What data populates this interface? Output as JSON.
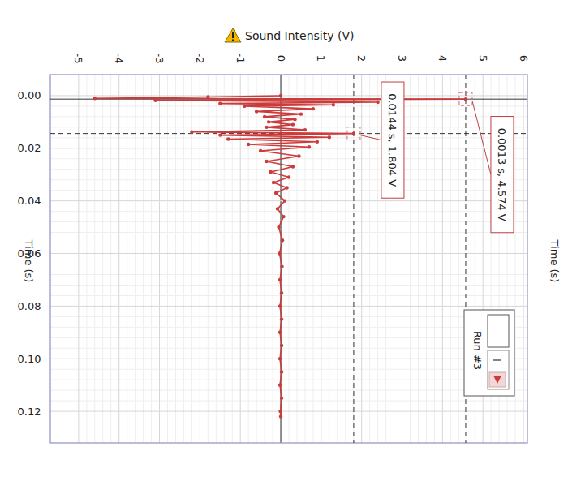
{
  "chart_data": {
    "type": "line",
    "y_label": "Sound Intensity (V)",
    "x_label": "Time (s)",
    "x": [
      0.0,
      0.0005,
      0.001,
      0.0013,
      0.0018,
      0.0025,
      0.003,
      0.0035,
      0.004,
      0.005,
      0.006,
      0.007,
      0.008,
      0.009,
      0.01,
      0.011,
      0.012,
      0.013,
      0.0138,
      0.0144,
      0.015,
      0.0158,
      0.0165,
      0.0175,
      0.0185,
      0.0195,
      0.021,
      0.023,
      0.025,
      0.027,
      0.029,
      0.031,
      0.033,
      0.035,
      0.037,
      0.04,
      0.043,
      0.046,
      0.05,
      0.055,
      0.06,
      0.065,
      0.07,
      0.075,
      0.08,
      0.085,
      0.09,
      0.095,
      0.1,
      0.105,
      0.11,
      0.115,
      0.12,
      0.122
    ],
    "series": [
      {
        "name": "Run #3",
        "color": "#cc3b3b",
        "marker": "circle",
        "values": [
          0,
          -1.8,
          -4.6,
          4.574,
          -3.1,
          2.4,
          -1.5,
          1.3,
          -0.9,
          0.8,
          -0.6,
          0.5,
          -0.4,
          0.35,
          -0.3,
          0.3,
          -0.35,
          0.6,
          -2.2,
          1.804,
          -1.5,
          1.2,
          -1.3,
          0.9,
          -0.8,
          0.7,
          -0.5,
          0.45,
          -0.35,
          0.3,
          -0.25,
          0.2,
          -0.18,
          0.15,
          -0.12,
          0.1,
          -0.08,
          0.07,
          -0.05,
          0.04,
          -0.03,
          0.03,
          -0.02,
          0.02,
          -0.02,
          0.02,
          -0.02,
          0.02,
          -0.02,
          0.02,
          -0.02,
          0.02,
          -0.01,
          0
        ]
      }
    ],
    "xlim": [
      -0.008,
      0.132
    ],
    "xticks": [
      {
        "value": 0,
        "label": "0.00"
      },
      0.02,
      0.04,
      0.06,
      0.08,
      {
        "value": 0.1,
        "label": "0.10"
      },
      0.12
    ],
    "ylim": [
      -5.7,
      6.1
    ],
    "yticks": [
      -5,
      -4,
      -3,
      -2,
      -1,
      0,
      1,
      2,
      3,
      4,
      5,
      6
    ],
    "grid": true,
    "legend": "right",
    "annotations": [
      {
        "x": 0.0013,
        "y": 4.574,
        "text": "0.0013 s, 4.574 V"
      },
      {
        "x": 0.0144,
        "y": 1.804,
        "text": "0.0144 s, 1.804 V"
      }
    ]
  }
}
